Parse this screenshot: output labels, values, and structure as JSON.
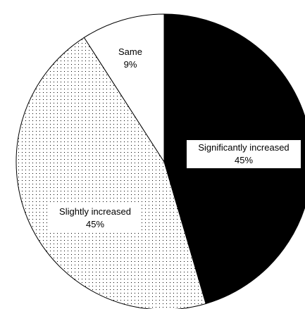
{
  "chart_data": {
    "type": "pie",
    "title": "",
    "slices": [
      {
        "label": "Significantly increased",
        "value": 45,
        "value_label": "45%",
        "fill": "solid-black"
      },
      {
        "label": "Slightly increased",
        "value": 45,
        "value_label": "45%",
        "fill": "dotted"
      },
      {
        "label": "Same",
        "value": 9,
        "value_label": "9%",
        "fill": "white"
      }
    ],
    "legend": "none",
    "start_angle": "12 o'clock, clockwise"
  }
}
